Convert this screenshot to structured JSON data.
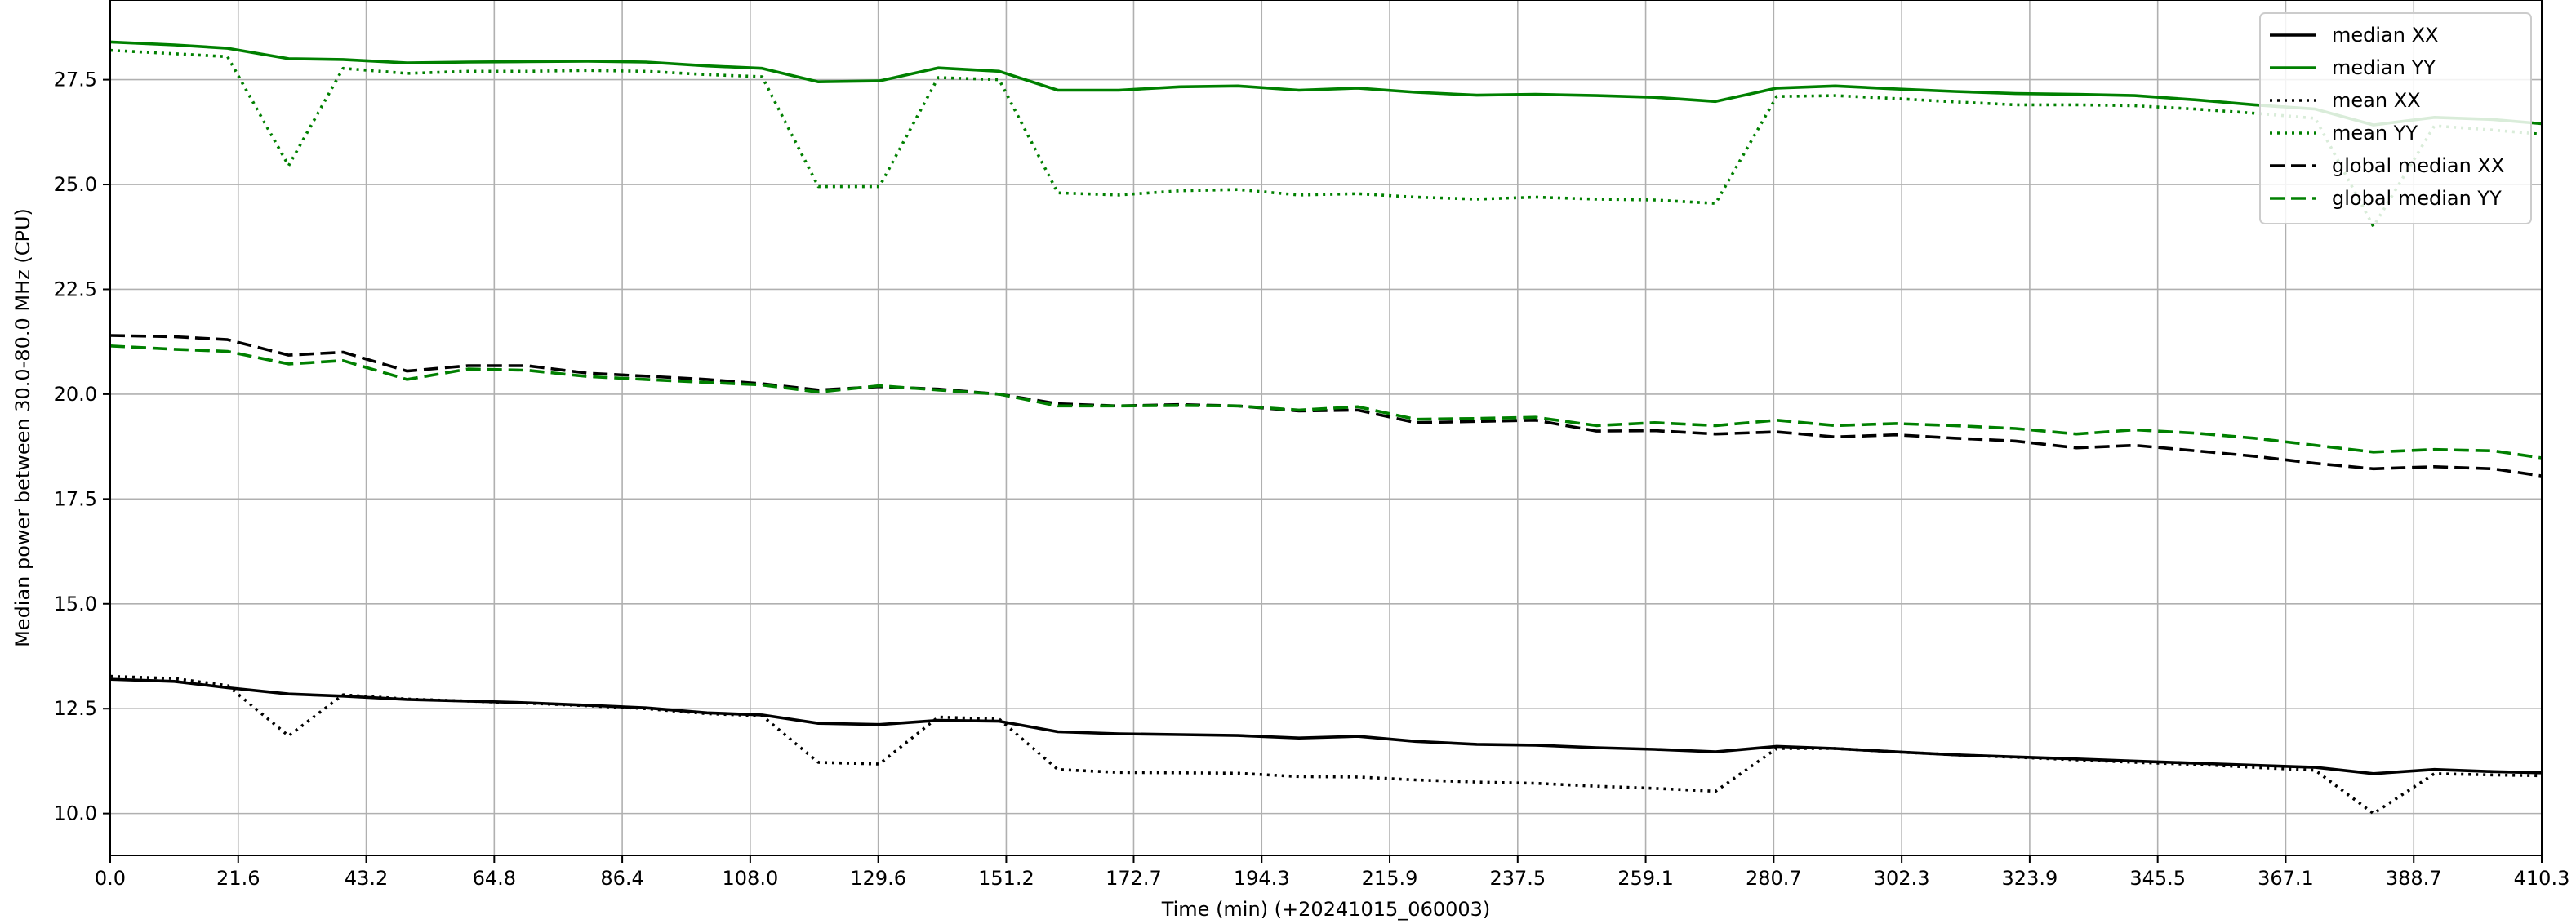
{
  "chart_data": {
    "type": "line",
    "title": "",
    "xlabel": "Time (min) (+20241015_060003)",
    "ylabel": "Median power between 30.0-80.0 MHz  (CPU)",
    "xlim": [
      0,
      410.3
    ],
    "ylim": [
      9.0,
      29.4
    ],
    "grid": true,
    "legend_position": "top-right",
    "x_ticks": [
      0.0,
      21.6,
      43.2,
      64.8,
      86.4,
      108.0,
      129.6,
      151.2,
      172.7,
      194.3,
      215.9,
      237.5,
      259.1,
      280.7,
      302.3,
      323.9,
      345.5,
      367.1,
      388.7,
      410.3
    ],
    "x_tick_labels": [
      "0.0",
      "21.6",
      "43.2",
      "64.8",
      "86.4",
      "108.0",
      "129.6",
      "151.2",
      "172.7",
      "194.3",
      "215.9",
      "237.5",
      "259.1",
      "280.7",
      "302.3",
      "323.9",
      "345.5",
      "367.1",
      "388.7",
      "410.3"
    ],
    "y_ticks": [
      10.0,
      12.5,
      15.0,
      17.5,
      20.0,
      22.5,
      25.0,
      27.5
    ],
    "y_tick_labels": [
      "10.0",
      "12.5",
      "15.0",
      "17.5",
      "20.0",
      "22.5",
      "25.0",
      "27.5"
    ],
    "x": [
      0.0,
      10.8,
      19.8,
      30.1,
      39.3,
      50.1,
      60.4,
      70.3,
      80.6,
      90.4,
      100.7,
      110.0,
      119.5,
      129.8,
      139.7,
      150.0,
      159.9,
      170.2,
      180.5,
      190.3,
      200.6,
      210.5,
      220.3,
      230.6,
      240.5,
      250.8,
      260.6,
      270.9,
      281.2,
      291.1,
      301.3,
      311.2,
      321.5,
      331.8,
      341.6,
      351.9,
      361.8,
      372.1,
      381.9,
      392.2,
      402.1,
      410.3
    ],
    "series": [
      {
        "name": "median XX",
        "color": "#000000",
        "style": "solid",
        "values": [
          13.2,
          13.15,
          13.0,
          12.85,
          12.8,
          12.72,
          12.68,
          12.64,
          12.58,
          12.52,
          12.4,
          12.35,
          12.15,
          12.12,
          12.22,
          12.2,
          11.95,
          11.9,
          11.88,
          11.86,
          11.8,
          11.84,
          11.72,
          11.65,
          11.63,
          11.57,
          11.53,
          11.47,
          11.6,
          11.55,
          11.47,
          11.4,
          11.35,
          11.3,
          11.25,
          11.2,
          11.15,
          11.1,
          10.95,
          11.05,
          11.0,
          10.97
        ]
      },
      {
        "name": "median YY",
        "color": "#008000",
        "style": "solid",
        "values": [
          28.4,
          28.33,
          28.25,
          28.0,
          27.98,
          27.9,
          27.92,
          27.93,
          27.94,
          27.92,
          27.83,
          27.77,
          27.45,
          27.47,
          27.78,
          27.7,
          27.25,
          27.25,
          27.33,
          27.35,
          27.25,
          27.3,
          27.2,
          27.13,
          27.15,
          27.12,
          27.08,
          26.98,
          27.3,
          27.35,
          27.28,
          27.22,
          27.17,
          27.15,
          27.12,
          27.02,
          26.9,
          26.8,
          26.42,
          26.6,
          26.55,
          26.45
        ]
      },
      {
        "name": "mean XX",
        "color": "#000000",
        "style": "dotted",
        "values": [
          13.27,
          13.22,
          13.05,
          11.85,
          12.83,
          12.73,
          12.68,
          12.63,
          12.57,
          12.5,
          12.38,
          12.33,
          11.22,
          11.18,
          12.3,
          12.25,
          11.05,
          10.98,
          10.97,
          10.96,
          10.88,
          10.87,
          10.8,
          10.75,
          10.72,
          10.65,
          10.6,
          10.53,
          11.55,
          11.55,
          11.47,
          11.4,
          11.34,
          11.28,
          11.22,
          11.17,
          11.1,
          11.03,
          10.0,
          10.95,
          10.92,
          10.9
        ]
      },
      {
        "name": "mean YY",
        "color": "#008000",
        "style": "dotted",
        "values": [
          28.2,
          28.12,
          28.05,
          25.45,
          27.77,
          27.65,
          27.7,
          27.7,
          27.72,
          27.7,
          27.62,
          27.57,
          24.95,
          24.95,
          27.55,
          27.5,
          24.8,
          24.75,
          24.85,
          24.88,
          24.75,
          24.78,
          24.7,
          24.65,
          24.7,
          24.65,
          24.63,
          24.55,
          27.1,
          27.12,
          27.05,
          26.97,
          26.9,
          26.9,
          26.88,
          26.8,
          26.7,
          26.58,
          24.0,
          26.4,
          26.3,
          26.2
        ]
      },
      {
        "name": "global median XX",
        "color": "#000000",
        "style": "dashed",
        "values": [
          21.4,
          21.37,
          21.3,
          20.93,
          21.0,
          20.55,
          20.68,
          20.68,
          20.5,
          20.43,
          20.35,
          20.25,
          20.1,
          20.18,
          20.12,
          20.0,
          19.77,
          19.72,
          19.75,
          19.72,
          19.6,
          19.62,
          19.32,
          19.35,
          19.38,
          19.12,
          19.13,
          19.05,
          19.1,
          18.98,
          19.03,
          18.95,
          18.88,
          18.72,
          18.78,
          18.65,
          18.52,
          18.35,
          18.22,
          18.27,
          18.22,
          18.05
        ]
      },
      {
        "name": "global median YY",
        "color": "#008000",
        "style": "dashed",
        "values": [
          21.15,
          21.07,
          21.02,
          20.72,
          20.8,
          20.35,
          20.6,
          20.57,
          20.42,
          20.35,
          20.28,
          20.22,
          20.05,
          20.2,
          20.1,
          20.0,
          19.72,
          19.72,
          19.73,
          19.72,
          19.62,
          19.7,
          19.4,
          19.42,
          19.45,
          19.25,
          19.32,
          19.25,
          19.38,
          19.25,
          19.3,
          19.25,
          19.18,
          19.05,
          19.15,
          19.07,
          18.95,
          18.78,
          18.62,
          18.68,
          18.65,
          18.48
        ]
      }
    ]
  }
}
